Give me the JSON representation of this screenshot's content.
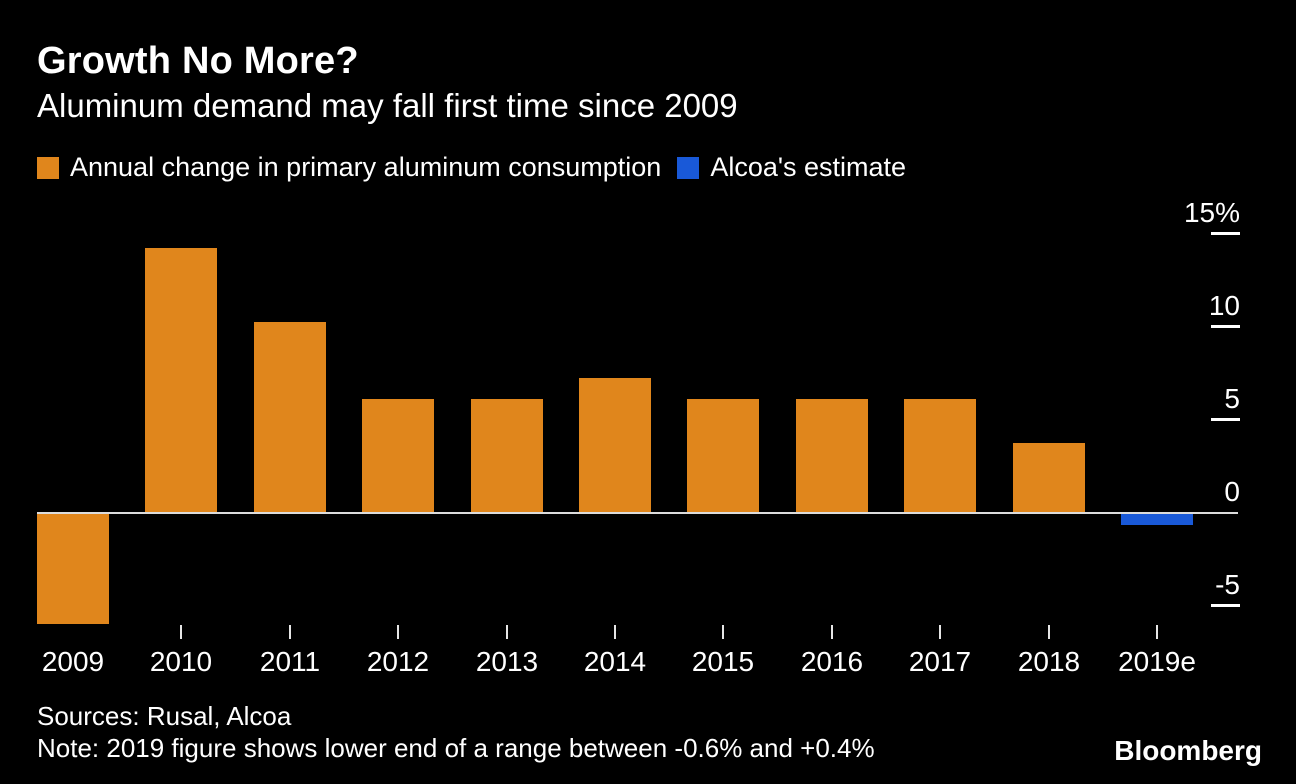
{
  "title": "Growth No More?",
  "subtitle": "Aluminum demand may fall first time since 2009",
  "legend": [
    {
      "label": "Annual change in primary aluminum consumption",
      "color": "#E0861C"
    },
    {
      "label": "Alcoa's estimate",
      "color": "#1959D8"
    }
  ],
  "chart_data": {
    "type": "bar",
    "title": "Growth No More?",
    "subtitle": "Aluminum demand may fall first time since 2009",
    "categories": [
      "2009",
      "2010",
      "2011",
      "2012",
      "2013",
      "2014",
      "2015",
      "2016",
      "2017",
      "2018",
      "2019e"
    ],
    "values": [
      -5.9,
      14.2,
      10.2,
      6.1,
      6.1,
      7.2,
      6.1,
      6.1,
      6.1,
      3.7,
      -0.6
    ],
    "point_series": [
      "consumption",
      "consumption",
      "consumption",
      "consumption",
      "consumption",
      "consumption",
      "consumption",
      "consumption",
      "consumption",
      "consumption",
      "estimate"
    ],
    "series_names": [
      "Annual change in primary aluminum consumption",
      "Alcoa's estimate"
    ],
    "unit": "%",
    "xlabel": "",
    "ylabel": "",
    "ylim": [
      -7,
      16
    ],
    "grid": false,
    "legend_position": "top",
    "yticks": [
      {
        "label": "15%",
        "value": 15
      },
      {
        "label": "10",
        "value": 10
      },
      {
        "label": "5",
        "value": 5
      },
      {
        "label": "0",
        "value": 0
      },
      {
        "label": "-5",
        "value": -5
      }
    ]
  },
  "footer": {
    "sources": "Sources: Rusal, Alcoa",
    "note": "Note: 2019 figure shows lower end of a range between -0.6% and +0.4%",
    "brand": "Bloomberg"
  },
  "colors": {
    "background": "#000000",
    "bar": "#E0861C",
    "estimate": "#1959D8",
    "text": "#FFFFFF",
    "axis": "#DCDCDC"
  }
}
